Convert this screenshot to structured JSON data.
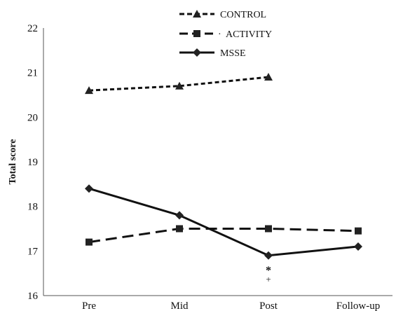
{
  "chart_data": {
    "type": "line",
    "categories": [
      "Pre",
      "Mid",
      "Post",
      "Follow-up"
    ],
    "ylabel": "Total score",
    "xlabel": "",
    "ylim": [
      16,
      22
    ],
    "yticks": [
      "16",
      "17",
      "18",
      "19",
      "20",
      "21",
      "22"
    ],
    "grid": false,
    "legend_position": "top-center",
    "series": [
      {
        "name": "CONTROL",
        "values": [
          20.6,
          20.7,
          20.9,
          null
        ],
        "marker": "triangle",
        "dash": "short-dash",
        "legend_separator": ""
      },
      {
        "name": "ACTIVITY",
        "values": [
          17.2,
          17.5,
          17.5,
          17.45
        ],
        "marker": "square",
        "dash": "long-dash",
        "legend_separator": "·"
      },
      {
        "name": "MSSE",
        "values": [
          18.4,
          17.8,
          16.9,
          17.1
        ],
        "marker": "diamond",
        "dash": "solid",
        "legend_separator": ""
      }
    ],
    "annotations": [
      {
        "category": "Post",
        "text": "*"
      },
      {
        "category": "Post",
        "text": "+"
      }
    ]
  },
  "colors": {
    "line": "#111111",
    "marker": "#222222",
    "axis": "#555555"
  }
}
